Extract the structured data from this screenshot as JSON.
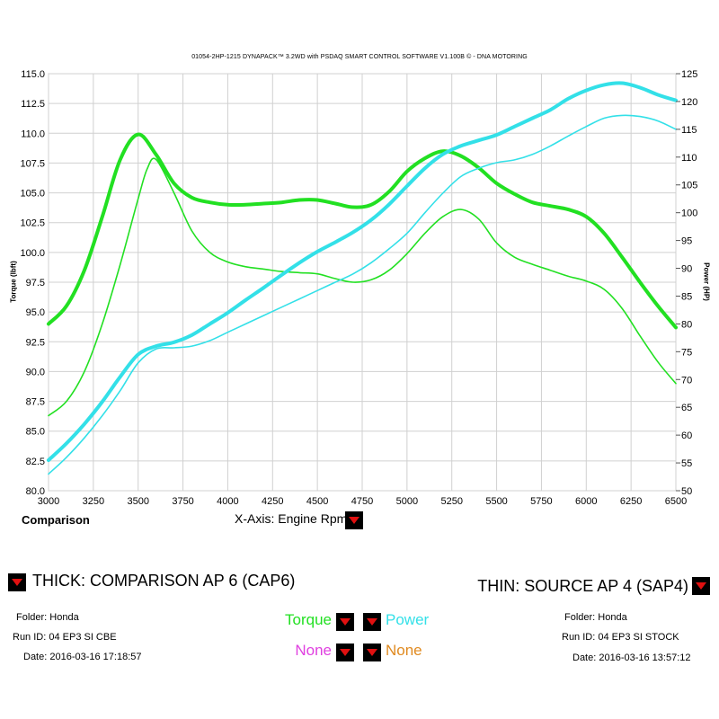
{
  "header": {
    "title": "01054-2HP-1215 DYNAPACK™ 3.2WD with PSDAQ SMART CONTROL SOFTWARE V1.100B © - DNA MOTORING"
  },
  "controls": {
    "comparison_label": "Comparison",
    "xaxis_label": "X-Axis: Engine Rpm",
    "thick_label": "THICK: COMPARISON AP 6 (CAP6)",
    "thin_label": "THIN: SOURCE AP 4 (SAP4)",
    "channel_left_top": "Torque",
    "channel_right_top": "Power",
    "channel_left_bottom": "None",
    "channel_right_bottom": "None"
  },
  "thick_run": {
    "folder": "Folder: Honda",
    "run_id": "Run ID: 04 EP3 SI CBE",
    "date": "Date: 2016-03-16 17:18:57"
  },
  "thin_run": {
    "folder": "Folder: Honda",
    "run_id": "Run ID: 04 EP3 SI STOCK",
    "date": "Date: 2016-03-16 13:57:12"
  },
  "colors": {
    "torque": "#22e022",
    "power": "#33e0e8",
    "none_left": "#e040e0",
    "none_right": "#e08a20",
    "grid": "#d0d0d0",
    "button": "#000000",
    "arrow": "#e01010"
  },
  "chart_data": {
    "type": "line",
    "xlabel": "",
    "ylabel": "Torque (lbft)",
    "y2label": "Power (HP)",
    "xlim": [
      3000,
      6500
    ],
    "ylim": [
      80,
      115
    ],
    "y2lim": [
      50,
      125
    ],
    "xticks": [
      3000,
      3250,
      3500,
      3750,
      4000,
      4250,
      4500,
      4750,
      5000,
      5250,
      5500,
      5750,
      6000,
      6250,
      6500
    ],
    "yticks": [
      "80.0",
      "82.5",
      "85.0",
      "87.5",
      "90.0",
      "92.5",
      "95.0",
      "97.5",
      "100.0",
      "102.5",
      "105.0",
      "107.5",
      "110.0",
      "112.5",
      "115.0"
    ],
    "y2ticks": [
      50,
      55,
      60,
      65,
      70,
      75,
      80,
      85,
      90,
      95,
      100,
      105,
      110,
      115,
      120,
      125
    ],
    "grid": true,
    "series": [
      {
        "run": "thick",
        "channel": "torque",
        "axis": "left",
        "x": [
          3000,
          3100,
          3200,
          3300,
          3400,
          3500,
          3600,
          3700,
          3800,
          3900,
          4000,
          4100,
          4200,
          4300,
          4400,
          4500,
          4600,
          4700,
          4800,
          4900,
          5000,
          5100,
          5200,
          5300,
          5400,
          5500,
          5600,
          5700,
          5800,
          5900,
          6000,
          6100,
          6200,
          6300,
          6400,
          6500
        ],
        "values": [
          94.0,
          95.5,
          98.5,
          103.0,
          107.8,
          109.9,
          108.2,
          105.8,
          104.6,
          104.2,
          104.0,
          104.0,
          104.1,
          104.2,
          104.4,
          104.4,
          104.1,
          103.8,
          104.0,
          105.1,
          106.8,
          107.9,
          108.5,
          108.1,
          107.1,
          105.8,
          104.9,
          104.2,
          103.9,
          103.6,
          103.0,
          101.6,
          99.6,
          97.5,
          95.5,
          93.7
        ]
      },
      {
        "run": "thin",
        "channel": "torque",
        "axis": "left",
        "x": [
          3000,
          3100,
          3200,
          3300,
          3400,
          3500,
          3550,
          3600,
          3700,
          3800,
          3900,
          4000,
          4100,
          4200,
          4300,
          4400,
          4500,
          4600,
          4700,
          4800,
          4900,
          5000,
          5100,
          5200,
          5300,
          5400,
          5500,
          5600,
          5700,
          5800,
          5900,
          6000,
          6100,
          6200,
          6300,
          6400,
          6500
        ],
        "values": [
          86.3,
          87.5,
          90.0,
          94.0,
          99.0,
          104.5,
          107.0,
          107.8,
          105.0,
          101.8,
          100.0,
          99.2,
          98.8,
          98.6,
          98.4,
          98.3,
          98.2,
          97.8,
          97.5,
          97.7,
          98.5,
          99.9,
          101.6,
          103.0,
          103.6,
          102.8,
          100.8,
          99.6,
          99.0,
          98.5,
          98.0,
          97.6,
          96.9,
          95.3,
          93.0,
          90.8,
          89.0
        ]
      },
      {
        "run": "thick",
        "channel": "power",
        "axis": "right",
        "x": [
          3000,
          3100,
          3200,
          3300,
          3400,
          3500,
          3600,
          3700,
          3800,
          3900,
          4000,
          4100,
          4200,
          4300,
          4400,
          4500,
          4600,
          4700,
          4800,
          4900,
          5000,
          5100,
          5200,
          5300,
          5400,
          5500,
          5600,
          5700,
          5800,
          5900,
          6000,
          6100,
          6200,
          6300,
          6400,
          6500
        ],
        "values": [
          55.5,
          58.5,
          62.0,
          66.0,
          70.5,
          74.5,
          76.0,
          76.7,
          78.0,
          80.0,
          82.0,
          84.3,
          86.5,
          88.8,
          91.0,
          93.0,
          94.7,
          96.5,
          98.7,
          101.5,
          104.8,
          108.0,
          110.5,
          112.0,
          113.0,
          114.0,
          115.5,
          117.0,
          118.5,
          120.5,
          122.0,
          123.0,
          123.3,
          122.5,
          121.2,
          120.2
        ]
      },
      {
        "run": "thin",
        "channel": "power",
        "axis": "right",
        "x": [
          3000,
          3100,
          3200,
          3300,
          3400,
          3500,
          3600,
          3700,
          3800,
          3900,
          4000,
          4100,
          4200,
          4300,
          4400,
          4500,
          4600,
          4700,
          4800,
          4900,
          5000,
          5100,
          5200,
          5300,
          5400,
          5500,
          5600,
          5700,
          5800,
          5900,
          6000,
          6100,
          6200,
          6300,
          6400,
          6500
        ],
        "values": [
          53.0,
          56.0,
          59.5,
          63.5,
          68.0,
          73.0,
          75.5,
          75.7,
          76.0,
          77.0,
          78.5,
          80.0,
          81.5,
          83.0,
          84.5,
          86.0,
          87.5,
          89.0,
          91.0,
          93.5,
          96.3,
          100.0,
          103.5,
          106.5,
          108.0,
          109.0,
          109.5,
          110.5,
          112.0,
          113.8,
          115.5,
          117.0,
          117.5,
          117.3,
          116.5,
          115.0
        ]
      }
    ]
  }
}
